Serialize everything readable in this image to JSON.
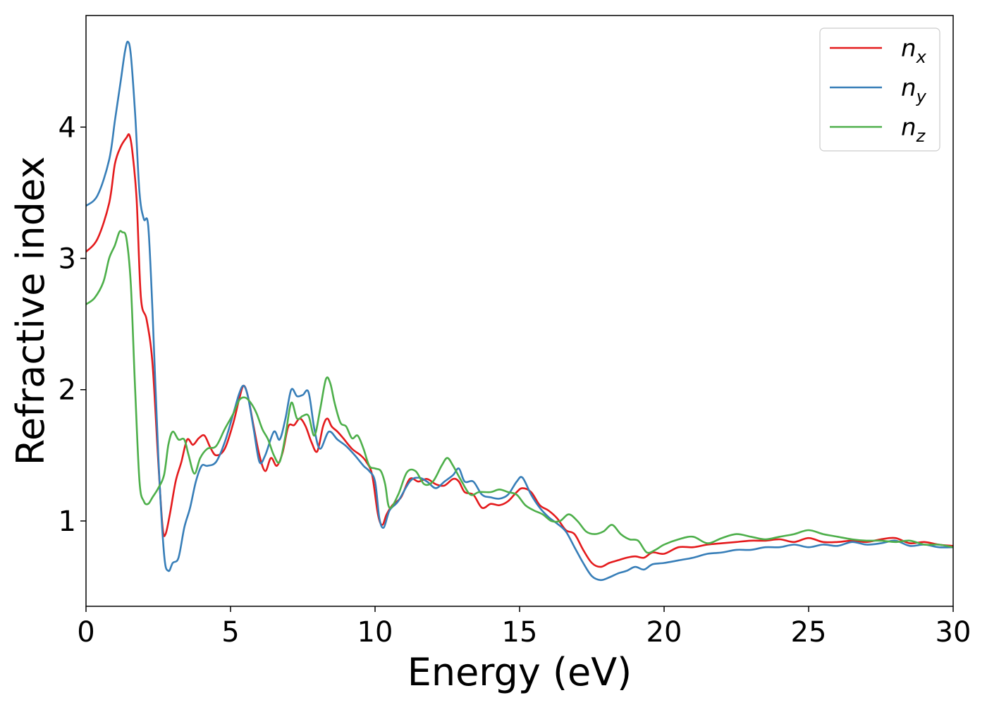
{
  "chart_data": {
    "type": "line",
    "title": "",
    "xlabel": "Energy (eV)",
    "ylabel": "Refractive index",
    "xlim": [
      0,
      30
    ],
    "ylim": [
      0.35,
      4.85
    ],
    "xticks": [
      0,
      5,
      10,
      15,
      20,
      25,
      30
    ],
    "xtick_labels": [
      "0",
      "5",
      "10",
      "15",
      "20",
      "25",
      "30"
    ],
    "yticks": [
      1,
      2,
      3,
      4
    ],
    "ytick_labels": [
      "1",
      "2",
      "3",
      "4"
    ],
    "grid": false,
    "legend": "top-right",
    "series": [
      {
        "name": "n",
        "subscript": "x",
        "color": "#e41a1c",
        "x": [
          0,
          0.4,
          0.8,
          1.0,
          1.2,
          1.4,
          1.5,
          1.6,
          1.75,
          1.9,
          2.1,
          2.3,
          2.5,
          2.65,
          2.75,
          2.9,
          3.1,
          3.3,
          3.5,
          3.7,
          3.9,
          4.1,
          4.3,
          4.5,
          4.8,
          5.1,
          5.3,
          5.45,
          5.6,
          5.8,
          6.0,
          6.2,
          6.4,
          6.6,
          6.8,
          7.0,
          7.2,
          7.4,
          7.6,
          7.8,
          8.0,
          8.2,
          8.35,
          8.5,
          8.7,
          8.9,
          9.2,
          9.5,
          9.7,
          9.9,
          10.1,
          10.25,
          10.4,
          10.6,
          10.9,
          11.2,
          11.5,
          11.8,
          12.1,
          12.4,
          12.7,
          12.9,
          13.1,
          13.4,
          13.7,
          14.0,
          14.3,
          14.6,
          14.9,
          15.1,
          15.4,
          15.7,
          16.0,
          16.3,
          16.6,
          16.9,
          17.2,
          17.5,
          17.8,
          18.1,
          18.4,
          18.7,
          19.0,
          19.3,
          19.6,
          20.0,
          20.5,
          21.0,
          21.5,
          22.0,
          22.5,
          23.0,
          23.5,
          24.0,
          24.5,
          25.0,
          25.5,
          26.0,
          26.5,
          27.0,
          27.5,
          28.0,
          28.5,
          29.0,
          29.5,
          30.0
        ],
        "y": [
          3.05,
          3.15,
          3.42,
          3.72,
          3.85,
          3.92,
          3.94,
          3.82,
          3.45,
          2.7,
          2.53,
          2.2,
          1.45,
          0.95,
          0.9,
          1.05,
          1.3,
          1.45,
          1.62,
          1.58,
          1.63,
          1.65,
          1.56,
          1.5,
          1.55,
          1.75,
          1.93,
          2.03,
          1.95,
          1.72,
          1.5,
          1.38,
          1.48,
          1.42,
          1.52,
          1.72,
          1.73,
          1.78,
          1.72,
          1.6,
          1.53,
          1.72,
          1.78,
          1.72,
          1.68,
          1.63,
          1.55,
          1.5,
          1.45,
          1.35,
          1.05,
          0.97,
          1.05,
          1.12,
          1.18,
          1.32,
          1.3,
          1.32,
          1.28,
          1.27,
          1.32,
          1.3,
          1.22,
          1.2,
          1.1,
          1.13,
          1.12,
          1.15,
          1.22,
          1.25,
          1.22,
          1.12,
          1.08,
          1.02,
          0.93,
          0.9,
          0.78,
          0.68,
          0.65,
          0.68,
          0.7,
          0.72,
          0.73,
          0.72,
          0.76,
          0.75,
          0.8,
          0.8,
          0.82,
          0.83,
          0.84,
          0.85,
          0.85,
          0.86,
          0.84,
          0.87,
          0.84,
          0.84,
          0.85,
          0.84,
          0.86,
          0.87,
          0.83,
          0.84,
          0.82,
          0.81
        ]
      },
      {
        "name": "n",
        "subscript": "y",
        "color": "#377eb8",
        "x": [
          0,
          0.4,
          0.8,
          1.0,
          1.2,
          1.35,
          1.45,
          1.55,
          1.7,
          1.85,
          2.0,
          2.15,
          2.3,
          2.5,
          2.7,
          2.85,
          3.0,
          3.2,
          3.4,
          3.6,
          3.8,
          4.0,
          4.2,
          4.5,
          4.8,
          5.1,
          5.3,
          5.45,
          5.6,
          5.8,
          6.0,
          6.2,
          6.5,
          6.7,
          6.9,
          7.1,
          7.3,
          7.5,
          7.7,
          7.9,
          8.1,
          8.4,
          8.7,
          9.0,
          9.3,
          9.6,
          9.8,
          10.0,
          10.15,
          10.3,
          10.5,
          10.8,
          11.2,
          11.5,
          11.8,
          12.1,
          12.4,
          12.7,
          12.9,
          13.1,
          13.4,
          13.7,
          14.0,
          14.3,
          14.6,
          14.9,
          15.1,
          15.4,
          15.7,
          16.0,
          16.3,
          16.6,
          16.9,
          17.2,
          17.5,
          17.8,
          18.1,
          18.4,
          18.7,
          19.0,
          19.3,
          19.6,
          20.0,
          20.5,
          21.0,
          21.5,
          22.0,
          22.5,
          23.0,
          23.5,
          24.0,
          24.5,
          25.0,
          25.5,
          26.0,
          26.5,
          27.0,
          27.5,
          28.0,
          28.5,
          29.0,
          29.5,
          30.0
        ],
        "y": [
          3.4,
          3.48,
          3.75,
          4.05,
          4.35,
          4.58,
          4.65,
          4.55,
          4.1,
          3.5,
          3.3,
          3.25,
          2.6,
          1.5,
          0.75,
          0.62,
          0.68,
          0.72,
          0.95,
          1.1,
          1.3,
          1.42,
          1.42,
          1.45,
          1.6,
          1.82,
          1.97,
          2.03,
          1.95,
          1.7,
          1.45,
          1.5,
          1.68,
          1.62,
          1.78,
          2.0,
          1.95,
          1.96,
          1.98,
          1.7,
          1.55,
          1.68,
          1.62,
          1.57,
          1.5,
          1.42,
          1.38,
          1.3,
          1.02,
          0.95,
          1.08,
          1.15,
          1.3,
          1.33,
          1.3,
          1.25,
          1.3,
          1.35,
          1.4,
          1.3,
          1.3,
          1.2,
          1.18,
          1.17,
          1.2,
          1.3,
          1.33,
          1.2,
          1.1,
          1.03,
          0.98,
          0.92,
          0.8,
          0.68,
          0.58,
          0.55,
          0.57,
          0.6,
          0.62,
          0.65,
          0.63,
          0.67,
          0.68,
          0.7,
          0.72,
          0.75,
          0.76,
          0.78,
          0.78,
          0.8,
          0.8,
          0.82,
          0.8,
          0.82,
          0.81,
          0.84,
          0.82,
          0.83,
          0.85,
          0.81,
          0.82,
          0.8,
          0.8
        ]
      },
      {
        "name": "n",
        "subscript": "z",
        "color": "#4daf4a",
        "x": [
          0,
          0.3,
          0.6,
          0.8,
          1.0,
          1.15,
          1.25,
          1.4,
          1.55,
          1.7,
          1.85,
          2.0,
          2.15,
          2.3,
          2.5,
          2.7,
          2.85,
          3.0,
          3.2,
          3.4,
          3.55,
          3.75,
          3.95,
          4.2,
          4.5,
          4.8,
          5.1,
          5.3,
          5.5,
          5.7,
          5.9,
          6.1,
          6.3,
          6.5,
          6.7,
          6.9,
          7.1,
          7.3,
          7.5,
          7.7,
          7.9,
          8.1,
          8.3,
          8.45,
          8.6,
          8.8,
          9.0,
          9.2,
          9.4,
          9.6,
          9.8,
          10.0,
          10.2,
          10.35,
          10.5,
          10.8,
          11.1,
          11.4,
          11.7,
          12.0,
          12.3,
          12.5,
          12.7,
          13.0,
          13.3,
          13.6,
          14.0,
          14.3,
          14.6,
          14.9,
          15.2,
          15.5,
          15.8,
          16.1,
          16.4,
          16.7,
          17.0,
          17.3,
          17.6,
          17.9,
          18.2,
          18.5,
          18.8,
          19.1,
          19.4,
          19.7,
          20.0,
          20.5,
          21.0,
          21.5,
          22.0,
          22.5,
          23.0,
          23.5,
          24.0,
          24.5,
          25.0,
          25.5,
          26.0,
          26.5,
          27.0,
          27.5,
          28.0,
          28.5,
          29.0,
          29.5,
          30.0
        ],
        "y": [
          2.65,
          2.7,
          2.82,
          3.0,
          3.1,
          3.2,
          3.2,
          3.15,
          2.8,
          2.0,
          1.3,
          1.15,
          1.13,
          1.18,
          1.25,
          1.35,
          1.58,
          1.68,
          1.62,
          1.62,
          1.5,
          1.36,
          1.48,
          1.55,
          1.57,
          1.7,
          1.82,
          1.92,
          1.94,
          1.9,
          1.82,
          1.7,
          1.62,
          1.5,
          1.45,
          1.65,
          1.9,
          1.78,
          1.8,
          1.8,
          1.65,
          1.85,
          2.08,
          2.05,
          1.9,
          1.75,
          1.72,
          1.63,
          1.65,
          1.55,
          1.42,
          1.4,
          1.38,
          1.28,
          1.1,
          1.2,
          1.37,
          1.38,
          1.28,
          1.3,
          1.42,
          1.48,
          1.42,
          1.3,
          1.2,
          1.22,
          1.22,
          1.24,
          1.22,
          1.2,
          1.12,
          1.08,
          1.05,
          1.0,
          1.0,
          1.05,
          1.0,
          0.92,
          0.9,
          0.92,
          0.97,
          0.9,
          0.86,
          0.85,
          0.76,
          0.78,
          0.82,
          0.86,
          0.88,
          0.83,
          0.87,
          0.9,
          0.88,
          0.86,
          0.88,
          0.9,
          0.93,
          0.9,
          0.88,
          0.86,
          0.85,
          0.85,
          0.84,
          0.85,
          0.82,
          0.82,
          0.8
        ]
      }
    ]
  }
}
